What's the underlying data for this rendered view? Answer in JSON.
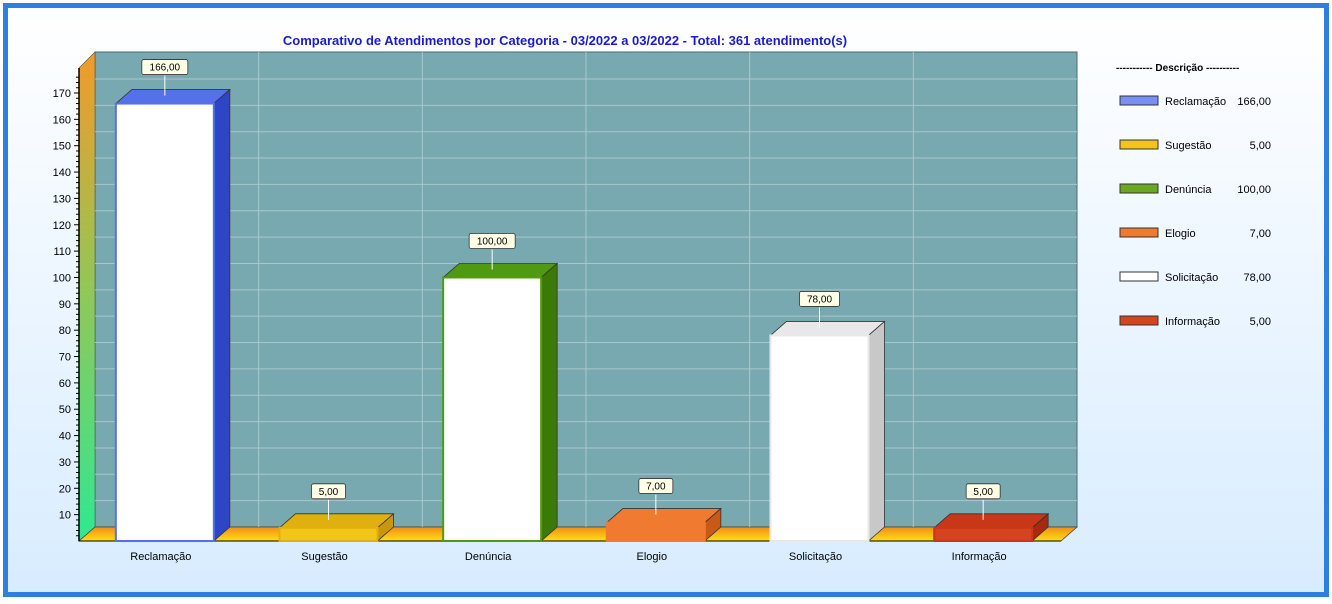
{
  "chart_data": {
    "type": "bar",
    "title": "Comparativo de Atendimentos por Categoria - 03/2022 a 03/2022 - Total: 361 atendimento(s)",
    "categories": [
      "Reclamação",
      "Sugestão",
      "Denúncia",
      "Elogio",
      "Solicitação",
      "Informação"
    ],
    "values": [
      166,
      5,
      100,
      7,
      78,
      5
    ],
    "value_labels": [
      "166,00",
      "5,00",
      "100,00",
      "7,00",
      "78,00",
      "5,00"
    ],
    "ylim": [
      0,
      180
    ],
    "yticks": [
      10,
      20,
      30,
      40,
      50,
      60,
      70,
      80,
      90,
      100,
      110,
      120,
      130,
      140,
      150,
      160,
      170
    ],
    "grid": true,
    "legend": {
      "position": "right",
      "header": "----------- Descrição ----------",
      "entries": [
        {
          "label": "Reclamação",
          "value": "166,00",
          "color": "#7a8ff5"
        },
        {
          "label": "Sugestão",
          "value": "5,00",
          "color": "#f2c618"
        },
        {
          "label": "Denúncia",
          "value": "100,00",
          "color": "#6aa820"
        },
        {
          "label": "Elogio",
          "value": "7,00",
          "color": "#f07a30"
        },
        {
          "label": "Solicitação",
          "value": "78,00",
          "color": "#ffffff"
        },
        {
          "label": "Informação",
          "value": "5,00",
          "color": "#d6431f"
        }
      ]
    },
    "colors": {
      "plot_background": "#78a8b0",
      "frame_border": "#2f7fe0",
      "title": "#1a1ad0",
      "bar_front": [
        "#ffffff",
        "#f2c618",
        "#ffffff",
        "#f07a30",
        "#ffffff",
        "#d6431f"
      ],
      "bar_top": [
        "#5570e8",
        "#e0b010",
        "#4f9a10",
        "#f07a30",
        "#e8e8e8",
        "#c83818"
      ],
      "bar_side": [
        "#2f45c8",
        "#c8980a",
        "#3c7a08",
        "#c85a18",
        "#c8c8c8",
        "#a82810"
      ]
    }
  }
}
